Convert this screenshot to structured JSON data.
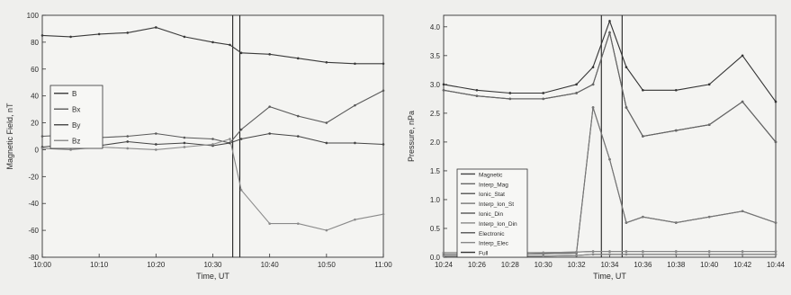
{
  "chart_data": [
    {
      "type": "line",
      "xlabel": "Time, UT",
      "ylabel": "Magnetic Field, nT",
      "xlim": [
        "10:00",
        "11:00"
      ],
      "ylim": [
        -80,
        100
      ],
      "x_ticks": [
        "10:00",
        "10:10",
        "10:20",
        "10:30",
        "10:40",
        "10:50",
        "11:00"
      ],
      "y_ticks": [
        -80,
        -60,
        -40,
        -20,
        0,
        20,
        40,
        60,
        80,
        100
      ],
      "legend_position": "middle-left",
      "event_markers": [
        "10:33:30",
        "10:34:45"
      ],
      "x": [
        "10:00",
        "10:05",
        "10:10",
        "10:15",
        "10:20",
        "10:25",
        "10:30",
        "10:33",
        "10:35",
        "10:40",
        "10:45",
        "10:50",
        "10:55",
        "11:00"
      ],
      "series": [
        {
          "name": "B",
          "color": "#3a3a3a",
          "values": [
            85,
            84,
            86,
            87,
            91,
            84,
            80,
            78,
            72,
            71,
            68,
            65,
            64,
            64
          ]
        },
        {
          "name": "Bx",
          "color": "#5a5a5a",
          "values": [
            10,
            11,
            9,
            10,
            12,
            9,
            8,
            5,
            15,
            32,
            25,
            20,
            33,
            44
          ]
        },
        {
          "name": "By",
          "color": "#444444",
          "values": [
            2,
            4,
            3,
            6,
            4,
            5,
            3,
            5,
            8,
            12,
            10,
            5,
            5,
            4
          ]
        },
        {
          "name": "Bz",
          "color": "#8a8a8a",
          "values": [
            1,
            0,
            2,
            1,
            0,
            2,
            4,
            8,
            -30,
            -55,
            -55,
            -60,
            -52,
            -48
          ]
        }
      ]
    },
    {
      "type": "line",
      "xlabel": "Time, UT",
      "ylabel": "Pressure, nPa",
      "xlim": [
        "10:24",
        "10:44"
      ],
      "ylim": [
        0.0,
        4.2
      ],
      "x_ticks": [
        "10:24",
        "10:26",
        "10:28",
        "10:30",
        "10:32",
        "10:34",
        "10:36",
        "10:38",
        "10:40",
        "10:42",
        "10:44"
      ],
      "y_ticks": [
        "0.0",
        "0.5",
        "1.0",
        "1.5",
        "2.0",
        "2.5",
        "3.0",
        "3.5",
        "4.0"
      ],
      "legend_position": "bottom-left",
      "event_markers": [
        "10:33:30",
        "10:34:45"
      ],
      "x": [
        "10:24",
        "10:26",
        "10:28",
        "10:30",
        "10:32",
        "10:33",
        "10:34",
        "10:35",
        "10:36",
        "10:38",
        "10:40",
        "10:42",
        "10:44"
      ],
      "series": [
        {
          "name": "Magnetic",
          "color": "#444444",
          "values": [
            2.9,
            2.8,
            2.75,
            2.75,
            2.85,
            3.0,
            3.9,
            2.6,
            2.1,
            2.2,
            2.3,
            2.7,
            2.0
          ]
        },
        {
          "name": "Interp_Mag",
          "color": "#666666",
          "values": [
            2.9,
            2.8,
            2.75,
            2.75,
            2.85,
            3.0,
            3.9,
            2.6,
            2.1,
            2.2,
            2.3,
            2.7,
            2.0
          ]
        },
        {
          "name": "Ionic_Stat",
          "color": "#555555",
          "values": [
            0.05,
            0.05,
            0.05,
            0.06,
            0.07,
            2.6,
            1.7,
            0.6,
            0.7,
            0.6,
            0.7,
            0.8,
            0.6
          ]
        },
        {
          "name": "Interp_Ion_St",
          "color": "#777777",
          "values": [
            0.05,
            0.05,
            0.05,
            0.06,
            0.07,
            2.6,
            1.7,
            0.6,
            0.7,
            0.6,
            0.7,
            0.8,
            0.6
          ]
        },
        {
          "name": "Ionic_Din",
          "color": "#555555",
          "values": [
            0.02,
            0.02,
            0.02,
            0.02,
            0.03,
            0.05,
            0.05,
            0.05,
            0.05,
            0.05,
            0.05,
            0.05,
            0.05
          ]
        },
        {
          "name": "Interp_Ion_Din",
          "color": "#888888",
          "values": [
            0.02,
            0.02,
            0.02,
            0.02,
            0.03,
            0.05,
            0.05,
            0.05,
            0.05,
            0.05,
            0.05,
            0.05,
            0.05
          ]
        },
        {
          "name": "Electronic",
          "color": "#555555",
          "values": [
            0.08,
            0.08,
            0.08,
            0.08,
            0.09,
            0.1,
            0.1,
            0.1,
            0.1,
            0.1,
            0.1,
            0.1,
            0.1
          ]
        },
        {
          "name": "Interp_Elec",
          "color": "#888888",
          "values": [
            0.08,
            0.08,
            0.08,
            0.08,
            0.09,
            0.1,
            0.1,
            0.1,
            0.1,
            0.1,
            0.1,
            0.1,
            0.1
          ]
        },
        {
          "name": "Full",
          "color": "#333333",
          "values": [
            3.0,
            2.9,
            2.85,
            2.85,
            3.0,
            3.3,
            4.1,
            3.3,
            2.9,
            2.9,
            3.0,
            3.5,
            2.7
          ]
        }
      ]
    }
  ]
}
